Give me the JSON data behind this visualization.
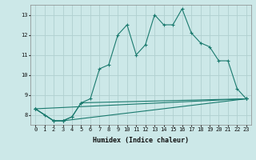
{
  "xlabel": "Humidex (Indice chaleur)",
  "background_color": "#cce8e8",
  "grid_color": "#b0d0d0",
  "line_color": "#1a7a6e",
  "xlim": [
    -0.5,
    23.5
  ],
  "ylim": [
    7.5,
    13.5
  ],
  "xticks": [
    0,
    1,
    2,
    3,
    4,
    5,
    6,
    7,
    8,
    9,
    10,
    11,
    12,
    13,
    14,
    15,
    16,
    17,
    18,
    19,
    20,
    21,
    22,
    23
  ],
  "yticks": [
    8,
    9,
    10,
    11,
    12,
    13
  ],
  "series": [
    {
      "x": [
        0,
        1,
        2,
        3,
        4,
        5,
        6,
        7,
        8,
        9,
        10,
        11,
        12,
        13,
        14,
        15,
        16,
        17,
        18,
        19,
        20,
        21,
        22,
        23
      ],
      "y": [
        8.3,
        8.0,
        7.7,
        7.7,
        7.9,
        8.6,
        8.8,
        10.3,
        10.5,
        12.0,
        12.5,
        11.0,
        11.5,
        13.0,
        12.5,
        12.5,
        13.3,
        12.1,
        11.6,
        11.4,
        10.7,
        10.7,
        9.3,
        8.8
      ]
    },
    {
      "x": [
        0,
        2,
        3,
        4,
        5,
        23
      ],
      "y": [
        8.3,
        7.7,
        7.7,
        7.9,
        8.6,
        8.8
      ]
    },
    {
      "x": [
        0,
        2,
        3,
        23
      ],
      "y": [
        8.3,
        7.7,
        7.7,
        8.8
      ]
    },
    {
      "x": [
        0,
        23
      ],
      "y": [
        8.3,
        8.8
      ]
    }
  ]
}
